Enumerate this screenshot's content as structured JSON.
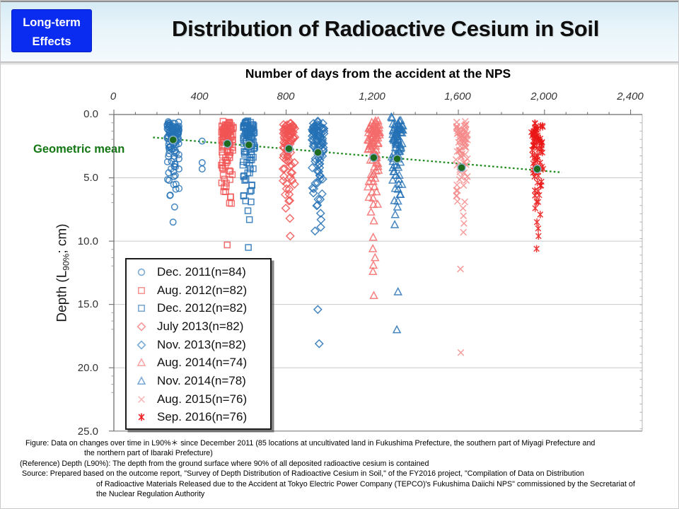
{
  "header": {
    "badge_line1": "Long-term",
    "badge_line2": "Effects",
    "title": "Distribution of Radioactive Cesium in Soil"
  },
  "chart": {
    "top_axis_title": "Number of days from the accident at the NPS",
    "x_ticks": [
      "0",
      "400",
      "800",
      "1,200",
      "1,600",
      "2,000",
      "2,400"
    ],
    "y_ticks": [
      "0.0",
      "5.0",
      "10.0",
      "15.0",
      "20.0",
      "25.0"
    ],
    "y_axis_title_pre": "Depth (L",
    "y_axis_title_sub": "90%",
    "y_axis_title_post": "; cm)",
    "geometric_mean_label": "Geometric mean"
  },
  "chart_data": {
    "type": "scatter",
    "title": "Distribution of Radioactive Cesium in Soil",
    "xlabel": "Number of days from the accident at the NPS",
    "ylabel": "Depth (L90%; cm)",
    "xlim": [
      0,
      2454
    ],
    "ylim": [
      0,
      25
    ],
    "y_axis_inverted": true,
    "grid": "horizontal",
    "legend_position": "lower-left inside plot",
    "series": [
      {
        "name": "Dec. 2011",
        "n": 84,
        "label": "Dec. 2011(n=84)",
        "marker": "circle",
        "color": "#2471b5",
        "day": 275,
        "depths": [
          0.6,
          0.7,
          0.7,
          0.8,
          0.8,
          0.9,
          0.9,
          1.0,
          1.0,
          1.0,
          1.1,
          1.1,
          1.2,
          1.2,
          1.2,
          1.3,
          1.3,
          1.4,
          1.4,
          1.5,
          1.5,
          1.6,
          1.6,
          1.7,
          1.7,
          1.8,
          1.8,
          1.9,
          2.0,
          2.0,
          2.1,
          2.2,
          2.3,
          2.4,
          2.5,
          2.6,
          2.7,
          2.8,
          3.0,
          3.1,
          3.3,
          3.5,
          3.7,
          3.9,
          4.1,
          4.3,
          4.6,
          4.9,
          5.2,
          5.5,
          5.9,
          6.4,
          7.3,
          8.5
        ],
        "extra_points": [
          [
            410,
            2.1
          ],
          [
            410,
            3.8
          ],
          [
            410,
            4.3
          ]
        ]
      },
      {
        "name": "Aug. 2012",
        "n": 82,
        "label": "Aug. 2012(n=82)",
        "marker": "square",
        "color": "#f15454",
        "day": 527,
        "depths": [
          0.6,
          0.7,
          0.8,
          0.8,
          0.9,
          0.9,
          1.0,
          1.0,
          1.1,
          1.1,
          1.2,
          1.2,
          1.3,
          1.3,
          1.4,
          1.4,
          1.5,
          1.5,
          1.6,
          1.7,
          1.7,
          1.8,
          1.9,
          2.0,
          2.0,
          2.1,
          2.2,
          2.3,
          2.4,
          2.5,
          2.6,
          2.8,
          2.9,
          3.0,
          3.2,
          3.4,
          3.6,
          3.8,
          4.0,
          4.2,
          4.5,
          4.8,
          5.1,
          5.4,
          5.7,
          6.1,
          6.5,
          7.0,
          10.3
        ],
        "extra_points": []
      },
      {
        "name": "Dec. 2012",
        "n": 82,
        "label": "Dec. 2012(n=82)",
        "marker": "square",
        "color": "#2471b5",
        "day": 627,
        "depths": [
          0.5,
          0.6,
          0.7,
          0.8,
          0.8,
          0.9,
          0.9,
          1.0,
          1.0,
          1.1,
          1.1,
          1.2,
          1.2,
          1.3,
          1.3,
          1.4,
          1.5,
          1.5,
          1.6,
          1.6,
          1.7,
          1.8,
          1.9,
          2.0,
          2.1,
          2.2,
          2.3,
          2.4,
          2.5,
          2.6,
          2.7,
          2.9,
          3.0,
          3.2,
          3.4,
          3.6,
          3.8,
          4.0,
          4.3,
          4.6,
          4.9,
          5.2,
          5.6,
          6.0,
          6.4,
          6.9,
          7.6,
          8.3,
          10.5
        ],
        "extra_points": []
      },
      {
        "name": "July 2013",
        "n": 82,
        "label": "July 2013(n=82)",
        "marker": "diamond",
        "color": "#f15454",
        "day": 813,
        "depths": [
          0.7,
          0.8,
          0.9,
          0.9,
          1.0,
          1.0,
          1.1,
          1.1,
          1.2,
          1.2,
          1.3,
          1.3,
          1.4,
          1.4,
          1.5,
          1.6,
          1.6,
          1.7,
          1.8,
          1.8,
          1.9,
          2.0,
          2.1,
          2.2,
          2.3,
          2.4,
          2.5,
          2.6,
          2.7,
          2.9,
          3.0,
          3.2,
          3.4,
          3.6,
          3.8,
          4.0,
          4.3,
          4.6,
          4.9,
          5.2,
          5.5,
          5.9,
          6.3,
          6.8,
          7.4,
          8.2,
          9.6
        ],
        "extra_points": []
      },
      {
        "name": "Nov. 2013",
        "n": 82,
        "label": "Nov. 2013(n=82)",
        "marker": "diamond",
        "color": "#2471b5",
        "day": 948,
        "depths": [
          0.6,
          0.7,
          0.8,
          0.9,
          1.0,
          1.0,
          1.1,
          1.1,
          1.2,
          1.2,
          1.3,
          1.3,
          1.4,
          1.5,
          1.5,
          1.6,
          1.7,
          1.7,
          1.8,
          1.9,
          2.0,
          2.1,
          2.2,
          2.3,
          2.4,
          2.5,
          2.6,
          2.8,
          2.9,
          3.1,
          3.3,
          3.5,
          3.7,
          3.9,
          4.2,
          4.5,
          4.8,
          5.1,
          5.4,
          5.8,
          6.2,
          6.7,
          7.2,
          7.8,
          8.3,
          8.9,
          9.2,
          15.4,
          18.1
        ],
        "extra_points": []
      },
      {
        "name": "Aug. 2014",
        "n": 74,
        "label": "Aug. 2014(n=74)",
        "marker": "triangle",
        "color": "#f46a6a",
        "day": 1207,
        "depths": [
          0.5,
          0.7,
          0.8,
          0.9,
          1.0,
          1.1,
          1.1,
          1.2,
          1.3,
          1.3,
          1.4,
          1.5,
          1.5,
          1.6,
          1.7,
          1.8,
          1.9,
          2.0,
          2.1,
          2.2,
          2.3,
          2.4,
          2.5,
          2.7,
          2.8,
          3.0,
          3.2,
          3.4,
          3.6,
          3.8,
          4.1,
          4.4,
          4.7,
          5.0,
          5.3,
          5.7,
          6.1,
          6.6,
          7.1,
          7.7,
          8.4,
          9.7,
          10.6,
          11.3,
          11.9,
          12.4,
          14.3
        ],
        "extra_points": []
      },
      {
        "name": "Nov. 2014",
        "n": 78,
        "label": "Nov. 2014(n=78)",
        "marker": "triangle",
        "color": "#2471b5",
        "day": 1316,
        "depths": [
          0.2,
          0.5,
          0.7,
          0.8,
          0.9,
          1.0,
          1.1,
          1.2,
          1.2,
          1.3,
          1.4,
          1.4,
          1.5,
          1.6,
          1.7,
          1.8,
          1.9,
          2.0,
          2.1,
          2.2,
          2.3,
          2.4,
          2.6,
          2.7,
          2.9,
          3.1,
          3.3,
          3.5,
          3.7,
          4.0,
          4.2,
          4.5,
          4.8,
          5.1,
          5.5,
          5.9,
          6.3,
          6.8,
          7.3,
          7.9,
          8.7,
          14.0,
          17.0
        ],
        "extra_points": []
      },
      {
        "name": "Aug. 2015",
        "n": 76,
        "label": "Aug. 2015(n=76)",
        "marker": "x",
        "color": "#f58a8a",
        "day": 1615,
        "depths": [
          0.6,
          0.8,
          0.9,
          1.0,
          1.1,
          1.2,
          1.3,
          1.4,
          1.5,
          1.5,
          1.6,
          1.7,
          1.8,
          1.9,
          2.0,
          2.1,
          2.2,
          2.3,
          2.5,
          2.6,
          2.8,
          2.9,
          3.1,
          3.3,
          3.5,
          3.8,
          4.0,
          4.3,
          4.6,
          4.9,
          5.2,
          5.6,
          6.0,
          6.4,
          6.9,
          7.4,
          8.0,
          8.6,
          9.3,
          12.2,
          18.8
        ],
        "extra_points": []
      },
      {
        "name": "Sep. 2016",
        "n": 76,
        "label": "Sep. 2016(n=76)",
        "marker": "asterisk",
        "color": "#ea1515",
        "day": 1966,
        "depths": [
          0.7,
          0.9,
          1.0,
          1.1,
          1.2,
          1.3,
          1.4,
          1.5,
          1.6,
          1.7,
          1.8,
          1.9,
          2.0,
          2.1,
          2.2,
          2.3,
          2.4,
          2.5,
          2.7,
          2.8,
          3.0,
          3.2,
          3.4,
          3.6,
          3.8,
          4.1,
          4.3,
          4.6,
          4.9,
          5.3,
          5.6,
          6.0,
          6.4,
          6.9,
          7.4,
          7.9,
          8.5,
          9.0,
          9.6,
          10.6
        ],
        "extra_points": []
      }
    ],
    "geometric_mean": {
      "label": "Geometric mean",
      "color": "#1c6b1e",
      "points": [
        [
          275,
          2.0
        ],
        [
          527,
          2.3
        ],
        [
          627,
          2.4
        ],
        [
          813,
          2.7
        ],
        [
          948,
          3.0
        ],
        [
          1207,
          3.4
        ],
        [
          1316,
          3.5
        ],
        [
          1615,
          4.2
        ],
        [
          1966,
          4.3
        ]
      ]
    },
    "trend_line": {
      "color": "#1f8c1f",
      "style": "dotted",
      "from": [
        182,
        1.81
      ],
      "to": [
        2081,
        4.57
      ]
    }
  },
  "colors": {
    "badge_blue": "#0a2cf0",
    "series_blue": "#2471b5",
    "series_red": "#f15454",
    "series_pink_x": "#f58a8a",
    "series_vivid_red": "#ea1515",
    "green_label": "#137713",
    "trend_green": "#1f8c1f",
    "mean_dot_green": "#1c6b1e"
  },
  "captions": {
    "line1": "Figure:  Data on changes  over  time in L90%＊  since  December  2011 (85 locations  at uncultivated  land in Fukushima  Prefecture,  the southern  part of Miyagi  Prefecture  and",
    "line2": "the northern  part of Ibaraki  Prefecture)",
    "line3": "(Reference)  Depth (L90%):  The depth from the ground surface where  90% of all deposited radioactive cesium is contained",
    "line4": "Source:  Prepared based on the outcome report, \"Survey  of Depth  Distribution of Radioactive Cesium in Soil,\" of the  FY2016 project, \"Compilation of Data on Distribution",
    "line5": "of Radioactive Materials Released due to the  Accident at Tokyo Electric Power Company  (TEPCO)'s Fukushima Daiichi NPS\" commissioned by the Secretariat of",
    "line6": "the Nuclear Regulation Authority"
  }
}
